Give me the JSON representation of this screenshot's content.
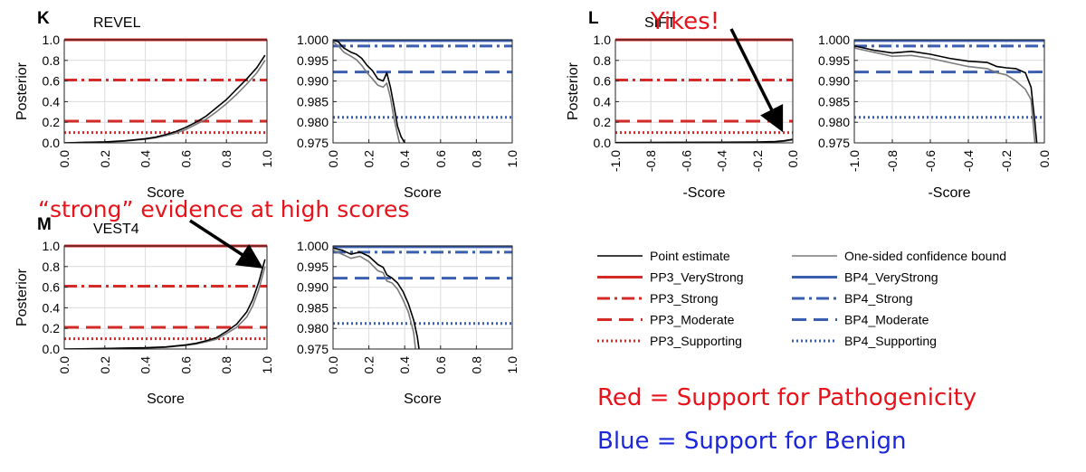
{
  "chart_data": [
    {
      "id": "revel-left",
      "type": "line",
      "panel_letter": "K",
      "title": "REVEL",
      "xlabel": "Score",
      "ylabel": "Posterior",
      "xlim": [
        0,
        1
      ],
      "ylim": [
        0,
        1
      ],
      "xticks": [
        "0.0",
        "0.2",
        "0.4",
        "0.6",
        "0.8",
        "1.0"
      ],
      "yticks": [
        "0.0",
        "0.2",
        "0.4",
        "0.6",
        "0.8",
        "1.0"
      ],
      "grid": true,
      "thresholds": [
        {
          "name": "PP3_VeryStrong",
          "value": 1.0,
          "style": "solid",
          "color": "#d42a28"
        },
        {
          "name": "PP3_Strong",
          "value": 0.61,
          "style": "dashdot",
          "color": "#d42a28"
        },
        {
          "name": "PP3_Moderate",
          "value": 0.21,
          "style": "dashed",
          "color": "#d42a28"
        },
        {
          "name": "PP3_Supporting",
          "value": 0.1,
          "style": "dotted",
          "color": "#d42a28"
        }
      ],
      "series": [
        {
          "name": "Point estimate",
          "color": "#000000",
          "x": [
            0.0,
            0.1,
            0.2,
            0.3,
            0.4,
            0.45,
            0.5,
            0.55,
            0.6,
            0.65,
            0.7,
            0.75,
            0.8,
            0.85,
            0.9,
            0.95,
            0.99
          ],
          "y": [
            0.0,
            0.005,
            0.01,
            0.02,
            0.04,
            0.055,
            0.08,
            0.11,
            0.15,
            0.2,
            0.26,
            0.34,
            0.42,
            0.52,
            0.62,
            0.73,
            0.85
          ]
        },
        {
          "name": "One-sided confidence bound",
          "color": "#7a7a7a",
          "x": [
            0.0,
            0.1,
            0.2,
            0.3,
            0.4,
            0.45,
            0.5,
            0.55,
            0.6,
            0.65,
            0.7,
            0.75,
            0.8,
            0.85,
            0.9,
            0.95,
            0.99
          ],
          "y": [
            0.0,
            0.004,
            0.008,
            0.017,
            0.035,
            0.048,
            0.07,
            0.095,
            0.13,
            0.18,
            0.23,
            0.3,
            0.38,
            0.47,
            0.57,
            0.68,
            0.8
          ]
        }
      ]
    },
    {
      "id": "revel-right",
      "type": "line",
      "title": "",
      "xlabel": "Score",
      "ylabel": "",
      "xlim": [
        0,
        1
      ],
      "ylim": [
        0.975,
        1.0
      ],
      "xticks": [
        "0.0",
        "0.2",
        "0.4",
        "0.6",
        "0.8",
        "1.0"
      ],
      "yticks": [
        "0.975",
        "0.980",
        "0.985",
        "0.990",
        "0.995",
        "1.000"
      ],
      "grid": true,
      "thresholds": [
        {
          "name": "BP4_VeryStrong",
          "value": 0.9998,
          "style": "solid",
          "color": "#3a5fb0"
        },
        {
          "name": "BP4_Strong",
          "value": 0.9985,
          "style": "dashdot",
          "color": "#3a5fb0"
        },
        {
          "name": "BP4_Moderate",
          "value": 0.9922,
          "style": "dashed",
          "color": "#3a5fb0"
        },
        {
          "name": "BP4_Supporting",
          "value": 0.9812,
          "style": "dotted",
          "color": "#3a5fb0"
        }
      ],
      "series": [
        {
          "name": "Point estimate",
          "color": "#000000",
          "x": [
            0.0,
            0.03,
            0.06,
            0.1,
            0.13,
            0.16,
            0.19,
            0.22,
            0.25,
            0.28,
            0.3,
            0.32,
            0.34,
            0.36,
            0.38,
            0.4
          ],
          "y": [
            1.0,
            0.9995,
            0.998,
            0.997,
            0.9965,
            0.9955,
            0.9938,
            0.9925,
            0.9905,
            0.99,
            0.992,
            0.9885,
            0.984,
            0.979,
            0.9765,
            0.975
          ]
        },
        {
          "name": "One-sided confidence bound",
          "color": "#7a7a7a",
          "x": [
            0.0,
            0.03,
            0.06,
            0.1,
            0.13,
            0.16,
            0.19,
            0.22,
            0.25,
            0.28,
            0.3,
            0.32,
            0.34,
            0.36,
            0.37
          ],
          "y": [
            0.9995,
            0.9985,
            0.997,
            0.996,
            0.9952,
            0.9938,
            0.992,
            0.9905,
            0.989,
            0.9885,
            0.9895,
            0.986,
            0.981,
            0.977,
            0.975
          ]
        }
      ]
    },
    {
      "id": "sift-left",
      "type": "line",
      "panel_letter": "L",
      "title": "SIFT",
      "xlabel": "-Score",
      "ylabel": "Posterior",
      "xlim": [
        -1,
        0
      ],
      "ylim": [
        0,
        1
      ],
      "xticks": [
        "-1.0",
        "-0.8",
        "-0.6",
        "-0.4",
        "-0.2",
        "0.0"
      ],
      "yticks": [
        "0.0",
        "0.2",
        "0.4",
        "0.6",
        "0.8",
        "1.0"
      ],
      "grid": true,
      "thresholds": [
        {
          "name": "PP3_VeryStrong",
          "value": 1.0,
          "style": "solid",
          "color": "#d42a28"
        },
        {
          "name": "PP3_Strong",
          "value": 0.61,
          "style": "dashdot",
          "color": "#d42a28"
        },
        {
          "name": "PP3_Moderate",
          "value": 0.21,
          "style": "dashed",
          "color": "#d42a28"
        },
        {
          "name": "PP3_Supporting",
          "value": 0.1,
          "style": "dotted",
          "color": "#d42a28"
        }
      ],
      "series": [
        {
          "name": "Point estimate",
          "color": "#000000",
          "x": [
            -1.0,
            -0.8,
            -0.6,
            -0.4,
            -0.2,
            -0.1,
            -0.05,
            0.0
          ],
          "y": [
            0.003,
            0.004,
            0.005,
            0.006,
            0.008,
            0.012,
            0.02,
            0.035
          ]
        },
        {
          "name": "One-sided confidence bound",
          "color": "#7a7a7a",
          "x": [
            -1.0,
            -0.8,
            -0.6,
            -0.4,
            -0.2,
            -0.1,
            -0.05,
            0.0
          ],
          "y": [
            0.002,
            0.003,
            0.004,
            0.005,
            0.006,
            0.009,
            0.015,
            0.028
          ]
        }
      ]
    },
    {
      "id": "sift-right",
      "type": "line",
      "title": "",
      "xlabel": "-Score",
      "ylabel": "",
      "xlim": [
        -1,
        0
      ],
      "ylim": [
        0.975,
        1.0
      ],
      "xticks": [
        "-1.0",
        "-0.8",
        "-0.6",
        "-0.4",
        "-0.2",
        "0.0"
      ],
      "yticks": [
        "0.975",
        "0.980",
        "0.985",
        "0.990",
        "0.995",
        "1.000"
      ],
      "grid": true,
      "thresholds": [
        {
          "name": "BP4_VeryStrong",
          "value": 0.9998,
          "style": "solid",
          "color": "#3a5fb0"
        },
        {
          "name": "BP4_Strong",
          "value": 0.9985,
          "style": "dashdot",
          "color": "#3a5fb0"
        },
        {
          "name": "BP4_Moderate",
          "value": 0.9922,
          "style": "dashed",
          "color": "#3a5fb0"
        },
        {
          "name": "BP4_Supporting",
          "value": 0.9812,
          "style": "dotted",
          "color": "#3a5fb0"
        }
      ],
      "series": [
        {
          "name": "Point estimate",
          "color": "#000000",
          "x": [
            -1.0,
            -0.9,
            -0.8,
            -0.7,
            -0.6,
            -0.5,
            -0.4,
            -0.3,
            -0.25,
            -0.2,
            -0.15,
            -0.1,
            -0.07,
            -0.05,
            -0.04
          ],
          "y": [
            0.9985,
            0.9975,
            0.9968,
            0.9972,
            0.9965,
            0.9955,
            0.9948,
            0.9945,
            0.9935,
            0.9932,
            0.993,
            0.992,
            0.9885,
            0.98,
            0.975
          ]
        },
        {
          "name": "One-sided confidence bound",
          "color": "#7a7a7a",
          "x": [
            -1.0,
            -0.9,
            -0.8,
            -0.7,
            -0.6,
            -0.5,
            -0.4,
            -0.3,
            -0.25,
            -0.2,
            -0.15,
            -0.1,
            -0.07,
            -0.05
          ],
          "y": [
            0.998,
            0.997,
            0.996,
            0.9962,
            0.9955,
            0.9945,
            0.9935,
            0.993,
            0.992,
            0.9915,
            0.99,
            0.988,
            0.9855,
            0.975
          ]
        }
      ]
    },
    {
      "id": "vest4-left",
      "type": "line",
      "panel_letter": "M",
      "title": "VEST4",
      "xlabel": "Score",
      "ylabel": "Posterior",
      "xlim": [
        0,
        1
      ],
      "ylim": [
        0,
        1
      ],
      "xticks": [
        "0.0",
        "0.2",
        "0.4",
        "0.6",
        "0.8",
        "1.0"
      ],
      "yticks": [
        "0.0",
        "0.2",
        "0.4",
        "0.6",
        "0.8",
        "1.0"
      ],
      "grid": true,
      "thresholds": [
        {
          "name": "PP3_VeryStrong",
          "value": 1.0,
          "style": "solid",
          "color": "#d42a28"
        },
        {
          "name": "PP3_Strong",
          "value": 0.61,
          "style": "dashdot",
          "color": "#d42a28"
        },
        {
          "name": "PP3_Moderate",
          "value": 0.21,
          "style": "dashed",
          "color": "#d42a28"
        },
        {
          "name": "PP3_Supporting",
          "value": 0.1,
          "style": "dotted",
          "color": "#d42a28"
        }
      ],
      "series": [
        {
          "name": "Point estimate",
          "color": "#000000",
          "x": [
            0.0,
            0.2,
            0.4,
            0.5,
            0.6,
            0.65,
            0.7,
            0.75,
            0.8,
            0.85,
            0.9,
            0.93,
            0.96,
            0.99
          ],
          "y": [
            0.0,
            0.005,
            0.012,
            0.02,
            0.04,
            0.055,
            0.08,
            0.11,
            0.17,
            0.24,
            0.36,
            0.48,
            0.65,
            0.87
          ]
        },
        {
          "name": "One-sided confidence bound",
          "color": "#7a7a7a",
          "x": [
            0.0,
            0.2,
            0.4,
            0.5,
            0.6,
            0.65,
            0.7,
            0.75,
            0.8,
            0.85,
            0.9,
            0.93,
            0.96,
            0.99
          ],
          "y": [
            0.0,
            0.004,
            0.01,
            0.017,
            0.035,
            0.048,
            0.07,
            0.095,
            0.15,
            0.21,
            0.31,
            0.42,
            0.58,
            0.8
          ]
        }
      ]
    },
    {
      "id": "vest4-right",
      "type": "line",
      "title": "",
      "xlabel": "Score",
      "ylabel": "",
      "xlim": [
        0,
        1
      ],
      "ylim": [
        0.975,
        1.0
      ],
      "xticks": [
        "0.0",
        "0.2",
        "0.4",
        "0.6",
        "0.8",
        "1.0"
      ],
      "yticks": [
        "0.975",
        "0.980",
        "0.985",
        "0.990",
        "0.995",
        "1.000"
      ],
      "grid": true,
      "thresholds": [
        {
          "name": "BP4_VeryStrong",
          "value": 0.9998,
          "style": "solid",
          "color": "#3a5fb0"
        },
        {
          "name": "BP4_Strong",
          "value": 0.9985,
          "style": "dashdot",
          "color": "#3a5fb0"
        },
        {
          "name": "BP4_Moderate",
          "value": 0.9922,
          "style": "dashed",
          "color": "#3a5fb0"
        },
        {
          "name": "BP4_Supporting",
          "value": 0.9812,
          "style": "dotted",
          "color": "#3a5fb0"
        }
      ],
      "series": [
        {
          "name": "Point estimate",
          "color": "#000000",
          "x": [
            0.0,
            0.05,
            0.1,
            0.15,
            0.2,
            0.25,
            0.28,
            0.3,
            0.33,
            0.36,
            0.39,
            0.42,
            0.45,
            0.47,
            0.48
          ],
          "y": [
            0.9995,
            0.999,
            0.998,
            0.9985,
            0.9975,
            0.9955,
            0.9948,
            0.993,
            0.9922,
            0.991,
            0.989,
            0.986,
            0.982,
            0.978,
            0.975
          ]
        },
        {
          "name": "One-sided confidence bound",
          "color": "#7a7a7a",
          "x": [
            0.0,
            0.05,
            0.1,
            0.15,
            0.2,
            0.25,
            0.28,
            0.3,
            0.33,
            0.36,
            0.39,
            0.42,
            0.45,
            0.46
          ],
          "y": [
            0.999,
            0.998,
            0.997,
            0.9975,
            0.9962,
            0.994,
            0.9935,
            0.9915,
            0.991,
            0.9895,
            0.987,
            0.984,
            0.979,
            0.975
          ]
        }
      ]
    }
  ],
  "legend": {
    "position": "right",
    "items": [
      {
        "label": "Point estimate",
        "style": "solid",
        "color": "#000000",
        "width": 1.5
      },
      {
        "label": "One-sided confidence bound",
        "style": "solid",
        "color": "#7a7a7a",
        "width": 1.5
      },
      {
        "label": "PP3_VeryStrong",
        "style": "solid",
        "color": "#d42a28",
        "width": 3
      },
      {
        "label": "BP4_VeryStrong",
        "style": "solid",
        "color": "#3a5fb0",
        "width": 3
      },
      {
        "label": "PP3_Strong",
        "style": "dashdot",
        "color": "#d42a28",
        "width": 3
      },
      {
        "label": "BP4_Strong",
        "style": "dashdot",
        "color": "#3a5fb0",
        "width": 3
      },
      {
        "label": "PP3_Moderate",
        "style": "dashed",
        "color": "#d42a28",
        "width": 3
      },
      {
        "label": "BP4_Moderate",
        "style": "dashed",
        "color": "#3a5fb0",
        "width": 3
      },
      {
        "label": "PP3_Supporting",
        "style": "dotted",
        "color": "#d42a28",
        "width": 3
      },
      {
        "label": "BP4_Supporting",
        "style": "dotted",
        "color": "#3a5fb0",
        "width": 3
      }
    ]
  },
  "annotations": {
    "yikes": "Yikes!",
    "strong_evidence": "“strong” evidence at high scores",
    "red_caption": "Red = Support for Pathogenicity",
    "blue_caption": "Blue = Support for Benign"
  },
  "colors": {
    "annotation_red": "#e8121a",
    "annotation_blue": "#1c27d9",
    "grid": "#dcdcdc"
  }
}
